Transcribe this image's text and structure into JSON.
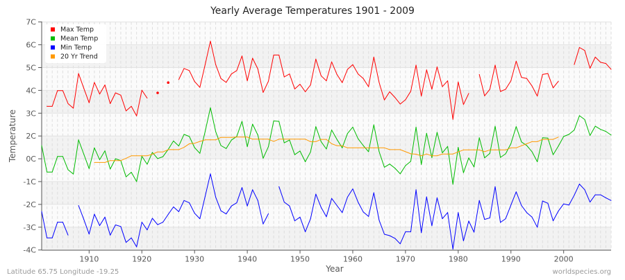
{
  "chart_data": {
    "type": "line",
    "title": "Yearly Average Temperatures 1901 - 2009",
    "xlabel": "Year",
    "ylabel": "Temperature",
    "xlim": [
      1901,
      2009
    ],
    "x_ticks": [
      1910,
      1920,
      1930,
      1940,
      1950,
      1960,
      1970,
      1980,
      1990,
      2000
    ],
    "y_tick_values": [
      7,
      6,
      5,
      4,
      3,
      2,
      0,
      -1,
      -2,
      -3,
      -4
    ],
    "y_tick_labels": [
      "7C",
      "6C",
      "5C",
      "4C",
      "3C",
      "2C",
      "0C",
      "-1C",
      "-2C",
      "-3C",
      "-4C"
    ],
    "grid": true,
    "legend_position": "top-left",
    "start_year": 1901,
    "series": [
      {
        "name": "Max Temp",
        "color": "#ff0000",
        "values": [
          null,
          3.3,
          3.3,
          3.99,
          3.99,
          3.42,
          3.22,
          4.74,
          4.09,
          3.46,
          4.35,
          3.84,
          4.24,
          3.42,
          3.89,
          3.79,
          3.1,
          3.3,
          2.88,
          4.01,
          3.66,
          null,
          3.89,
          null,
          4.34,
          null,
          4.47,
          4.96,
          4.87,
          4.39,
          4.13,
          5.13,
          6.16,
          5.13,
          4.52,
          4.35,
          4.72,
          4.87,
          5.51,
          4.42,
          5.41,
          4.94,
          3.91,
          4.4,
          5.55,
          5.55,
          4.59,
          4.72,
          4.06,
          4.27,
          3.94,
          4.24,
          5.37,
          4.64,
          4.42,
          5.25,
          4.7,
          4.34,
          4.92,
          5.13,
          4.72,
          4.52,
          4.16,
          5.46,
          4.35,
          3.58,
          3.94,
          3.69,
          3.4,
          3.59,
          3.96,
          5.11,
          3.75,
          4.9,
          4.05,
          5.03,
          4.16,
          4.42,
          2.73,
          4.37,
          3.38,
          3.87,
          null,
          4.7,
          3.76,
          4.05,
          5.11,
          3.95,
          4.05,
          4.42,
          5.28,
          4.57,
          4.52,
          4.19,
          3.75,
          4.7,
          4.74,
          4.11,
          4.4,
          null,
          null,
          5.13,
          5.88,
          5.75,
          4.97,
          5.46,
          5.23,
          5.18,
          4.92
        ]
      },
      {
        "name": "Mean Temp",
        "color": "#00bb00",
        "values": [
          1.16,
          -0.58,
          -0.58,
          0.2,
          0.2,
          -0.48,
          -0.67,
          1.66,
          0.4,
          -0.43,
          0.96,
          -0.04,
          0.7,
          -0.45,
          0.0,
          -0.08,
          -0.79,
          -0.59,
          -1.0,
          0.22,
          -0.24,
          0.56,
          0.02,
          0.18,
          0.82,
          1.56,
          1.12,
          2.07,
          1.96,
          0.98,
          0.48,
          2.19,
          3.24,
          2.19,
          1.16,
          0.9,
          1.64,
          1.96,
          2.64,
          1.06,
          2.52,
          2.04,
          0.04,
          1.06,
          2.66,
          2.64,
          1.4,
          1.64,
          0.36,
          0.68,
          -0.13,
          0.6,
          2.41,
          1.5,
          0.86,
          2.26,
          1.7,
          0.96,
          2.11,
          2.39,
          1.76,
          1.16,
          0.62,
          2.49,
          0.64,
          -0.37,
          -0.23,
          -0.41,
          -0.66,
          -0.3,
          -0.11,
          2.39,
          -0.25,
          2.12,
          0.1,
          2.16,
          0.52,
          1.08,
          -1.12,
          1.0,
          -0.61,
          0.08,
          -0.36,
          1.84,
          0.08,
          0.48,
          2.43,
          0.12,
          0.44,
          1.32,
          2.41,
          1.48,
          1.16,
          0.62,
          -0.13,
          1.84,
          1.82,
          0.36,
          1.12,
          1.96,
          2.07,
          2.26,
          2.89,
          2.72,
          2.02,
          2.43,
          2.29,
          2.2,
          2.04
        ]
      },
      {
        "name": "Min Temp",
        "color": "#0000ff",
        "values": [
          -2.31,
          -3.47,
          -3.47,
          -2.78,
          -2.78,
          -3.35,
          null,
          -2.05,
          -2.66,
          -3.3,
          -2.43,
          -2.93,
          -2.56,
          -3.35,
          -2.9,
          -2.97,
          -3.67,
          -3.47,
          -3.86,
          -2.78,
          -3.12,
          -2.61,
          -2.89,
          -2.78,
          -2.44,
          -2.11,
          -2.32,
          -1.83,
          -1.93,
          -2.39,
          -2.63,
          -1.65,
          -0.66,
          -1.68,
          -2.28,
          -2.42,
          -2.07,
          -1.93,
          -1.26,
          -2.07,
          -1.36,
          -1.83,
          -2.86,
          -2.41,
          null,
          -1.22,
          -1.9,
          -2.07,
          -2.72,
          -2.56,
          -3.2,
          -2.63,
          -1.55,
          -2.13,
          -2.54,
          -1.74,
          -2.05,
          -2.36,
          -1.68,
          -1.32,
          -1.9,
          -2.33,
          -2.53,
          -1.49,
          -2.69,
          -3.31,
          -3.37,
          -3.49,
          -3.73,
          -3.2,
          -3.2,
          -1.36,
          -3.24,
          -1.67,
          -2.94,
          -1.71,
          -2.63,
          -2.36,
          -3.96,
          -2.36,
          -3.6,
          -2.73,
          -3.22,
          -1.83,
          -2.66,
          -2.59,
          -1.22,
          -2.79,
          -2.63,
          -2.03,
          -1.45,
          -2.05,
          -2.36,
          -2.56,
          -3.0,
          -1.85,
          -1.95,
          -2.72,
          -2.29,
          -1.98,
          -2.03,
          -1.6,
          -1.11,
          -1.36,
          -1.9,
          -1.58,
          -1.58,
          -1.71,
          -1.83
        ]
      },
      {
        "name": "20 Yr Trend",
        "color": "#ff9900",
        "values": [
          null,
          null,
          null,
          null,
          null,
          null,
          null,
          null,
          null,
          null,
          -0.16,
          -0.16,
          -0.16,
          -0.08,
          -0.08,
          -0.08,
          0.04,
          0.26,
          0.26,
          0.26,
          0.26,
          0.4,
          0.6,
          0.6,
          0.8,
          0.8,
          0.8,
          1.0,
          1.32,
          1.36,
          1.52,
          1.66,
          1.66,
          1.66,
          1.88,
          1.88,
          1.88,
          1.9,
          1.9,
          1.9,
          1.72,
          1.72,
          1.72,
          1.72,
          1.52,
          1.72,
          1.72,
          1.72,
          1.72,
          1.72,
          1.72,
          1.5,
          1.5,
          1.7,
          1.7,
          1.32,
          1.14,
          1.14,
          0.96,
          0.96,
          0.96,
          0.96,
          0.96,
          0.96,
          0.96,
          0.96,
          0.8,
          0.8,
          0.8,
          0.62,
          0.44,
          0.4,
          0.26,
          0.42,
          0.26,
          0.26,
          0.42,
          0.42,
          0.42,
          0.6,
          0.78,
          0.78,
          0.78,
          0.78,
          0.62,
          0.78,
          0.78,
          0.78,
          0.78,
          0.96,
          0.96,
          1.14,
          1.32,
          1.5,
          1.5,
          1.7,
          1.7,
          1.7,
          1.9,
          null,
          null,
          null,
          null,
          null,
          null,
          null,
          null,
          null,
          null
        ]
      }
    ]
  },
  "footer": {
    "location": "Latitude 65.75 Longitude -19.25",
    "source": "worldspecies.org"
  }
}
